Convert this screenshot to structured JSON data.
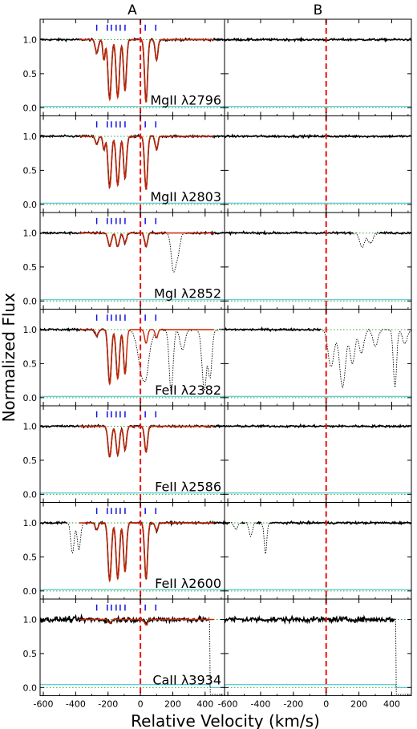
{
  "chart_data": {
    "type": "line",
    "columns": [
      "A",
      "B"
    ],
    "ylabel": "Normalized Flux",
    "xlabel": "Relative Velocity (km/s)",
    "xlim": [
      -620,
      520
    ],
    "ylim": [
      -0.12,
      1.3
    ],
    "x_ticks": [
      -600,
      -400,
      -200,
      0,
      200,
      400
    ],
    "y_ticks": [
      0.0,
      0.5,
      1.0
    ],
    "zero_velocity_line": 0,
    "component_velocities": [
      -270,
      -205,
      -180,
      -150,
      -125,
      -95,
      30,
      95
    ],
    "panels": [
      {
        "label": "MgII λ2796",
        "ion": "MgII",
        "wavelength": "2796",
        "A_components": [
          {
            "v": -270,
            "depth": 0.2,
            "width": 9
          },
          {
            "v": -225,
            "depth": 0.3,
            "width": 7
          },
          {
            "v": -190,
            "depth": 0.88,
            "width": 10
          },
          {
            "v": -140,
            "depth": 0.85,
            "width": 10
          },
          {
            "v": -95,
            "depth": 0.75,
            "width": 9
          },
          {
            "v": 35,
            "depth": 0.92,
            "width": 9
          },
          {
            "v": 100,
            "depth": 0.3,
            "width": 8
          }
        ],
        "A_extra": [],
        "B_components": [],
        "B_extra": [],
        "A_cut": null,
        "B_cut": null,
        "B_start": -620,
        "noise": 0.015
      },
      {
        "label": "MgII λ2803",
        "ion": "MgII",
        "wavelength": "2803",
        "A_components": [
          {
            "v": -270,
            "depth": 0.12,
            "width": 9
          },
          {
            "v": -225,
            "depth": 0.2,
            "width": 7
          },
          {
            "v": -190,
            "depth": 0.75,
            "width": 10
          },
          {
            "v": -140,
            "depth": 0.72,
            "width": 10
          },
          {
            "v": -95,
            "depth": 0.62,
            "width": 9
          },
          {
            "v": 35,
            "depth": 0.78,
            "width": 9
          },
          {
            "v": 100,
            "depth": 0.2,
            "width": 8
          }
        ],
        "A_extra": [],
        "B_components": [],
        "B_extra": [],
        "A_cut": null,
        "B_cut": null,
        "B_start": -620,
        "noise": 0.015
      },
      {
        "label": "MgI λ2852",
        "ion": "MgI",
        "wavelength": "2852",
        "A_components": [
          {
            "v": -190,
            "depth": 0.2,
            "width": 10
          },
          {
            "v": -140,
            "depth": 0.2,
            "width": 10
          },
          {
            "v": -95,
            "depth": 0.15,
            "width": 9
          },
          {
            "v": 35,
            "depth": 0.2,
            "width": 9
          }
        ],
        "A_extra": [
          {
            "v": 205,
            "depth": 0.55,
            "width": 14
          },
          {
            "v": 230,
            "depth": 0.3,
            "width": 14
          }
        ],
        "B_components": [],
        "B_extra": [
          {
            "v": 220,
            "depth": 0.2,
            "width": 15
          },
          {
            "v": 270,
            "depth": 0.15,
            "width": 15
          }
        ],
        "A_cut": null,
        "B_cut": null,
        "B_start": -620,
        "noise": 0.015
      },
      {
        "label": "FeII λ2382",
        "ion": "FeII",
        "wavelength": "2382",
        "A_components": [
          {
            "v": -270,
            "depth": 0.1,
            "width": 9
          },
          {
            "v": -190,
            "depth": 0.8,
            "width": 10
          },
          {
            "v": -140,
            "depth": 0.72,
            "width": 10
          },
          {
            "v": -95,
            "depth": 0.65,
            "width": 9
          },
          {
            "v": 35,
            "depth": 0.2,
            "width": 9
          },
          {
            "v": 100,
            "depth": 0.12,
            "width": 8
          }
        ],
        "A_extra": [
          {
            "v": 20,
            "depth": 0.75,
            "width": 30
          },
          {
            "v": 190,
            "depth": 0.92,
            "width": 12
          },
          {
            "v": 260,
            "depth": 0.3,
            "width": 15
          },
          {
            "v": 395,
            "depth": 0.9,
            "width": 14
          },
          {
            "v": 430,
            "depth": 0.7,
            "width": 12
          }
        ],
        "B_components": [],
        "B_extra": [
          {
            "v": 30,
            "depth": 0.55,
            "width": 18
          },
          {
            "v": 100,
            "depth": 0.85,
            "width": 18
          },
          {
            "v": 160,
            "depth": 0.5,
            "width": 15
          },
          {
            "v": 215,
            "depth": 0.35,
            "width": 15
          },
          {
            "v": 300,
            "depth": 0.25,
            "width": 15
          },
          {
            "v": 420,
            "depth": 0.85,
            "width": 10
          },
          {
            "v": 480,
            "depth": 0.2,
            "width": 15
          }
        ],
        "A_cut": null,
        "B_cut": null,
        "B_start": -620,
        "noise": 0.015
      },
      {
        "label": "FeII λ2586",
        "ion": "FeII",
        "wavelength": "2586",
        "A_components": [
          {
            "v": -190,
            "depth": 0.45,
            "width": 10
          },
          {
            "v": -140,
            "depth": 0.42,
            "width": 10
          },
          {
            "v": -95,
            "depth": 0.35,
            "width": 9
          },
          {
            "v": 35,
            "depth": 0.38,
            "width": 9
          }
        ],
        "A_extra": [],
        "B_components": [],
        "B_extra": [],
        "A_cut": null,
        "B_cut": null,
        "B_start": -620,
        "noise": 0.015
      },
      {
        "label": "FeII λ2600",
        "ion": "FeII",
        "wavelength": "2600",
        "A_components": [
          {
            "v": -270,
            "depth": 0.1,
            "width": 9
          },
          {
            "v": -190,
            "depth": 0.85,
            "width": 10
          },
          {
            "v": -140,
            "depth": 0.82,
            "width": 10
          },
          {
            "v": -95,
            "depth": 0.72,
            "width": 9
          },
          {
            "v": 35,
            "depth": 0.82,
            "width": 9
          },
          {
            "v": 100,
            "depth": 0.12,
            "width": 8
          }
        ],
        "A_extra": [
          {
            "v": -420,
            "depth": 0.45,
            "width": 10
          },
          {
            "v": -380,
            "depth": 0.4,
            "width": 10
          }
        ],
        "B_components": [],
        "B_extra": [
          {
            "v": -550,
            "depth": 0.1,
            "width": 10
          },
          {
            "v": -460,
            "depth": 0.2,
            "width": 10
          },
          {
            "v": -370,
            "depth": 0.45,
            "width": 8
          }
        ],
        "A_cut": null,
        "B_cut": null,
        "B_start": -620,
        "noise": 0.015
      },
      {
        "label": "CaII λ3934",
        "ion": "CaII",
        "wavelength": "3934",
        "A_components": [
          {
            "v": -190,
            "depth": 0.05,
            "width": 10
          },
          {
            "v": 35,
            "depth": 0.08,
            "width": 9
          }
        ],
        "A_extra": [],
        "B_components": [],
        "B_extra": [],
        "A_cut": 430,
        "B_cut": 425,
        "B_start": -620,
        "noise": 0.04
      }
    ]
  },
  "colors": {
    "data": "#000000",
    "model": "#cc2200",
    "error": "#33bbcc",
    "zero_line": "#ee1111",
    "ticks": "#1111dd",
    "continuum": "#33aa33"
  }
}
